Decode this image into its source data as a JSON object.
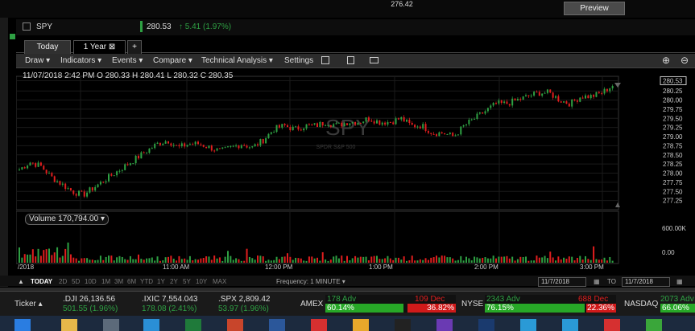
{
  "top": {
    "price_cut": "276.42",
    "preview_label": "Preview"
  },
  "header": {
    "symbol": "SPY",
    "last_price": "280.53",
    "change": "↑ 5.41 (1.97%)"
  },
  "tabs": [
    {
      "label": "Today"
    },
    {
      "label": "1 Year ⊠"
    },
    {
      "label": "+"
    }
  ],
  "toolbar": {
    "draw": "Draw ▾",
    "indicators": "Indicators ▾",
    "events": "Events ▾",
    "compare": "Compare ▾",
    "technical": "Technical Analysis ▾",
    "settings": "Settings",
    "zoom_in": "⊕",
    "zoom_out": "⊖"
  },
  "ohlc": "11/07/2018 2:42 PM  O 280.33  H 280.41  L 280.32  C 280.35",
  "watermark": {
    "symbol": "SPY",
    "name": "SPDR S&P 500"
  },
  "volume_label": "Volume 170,794.00 ▾",
  "price_axis": [
    "280.53",
    "280.25",
    "280.00",
    "279.75",
    "279.50",
    "279.25",
    "279.00",
    "278.75",
    "278.50",
    "278.25",
    "278.00",
    "277.75",
    "277.50",
    "277.25"
  ],
  "volume_axis": [
    "600.00K",
    "0.00"
  ],
  "time_axis": [
    "/2018",
    "11:00 AM",
    "12:00 PM",
    "1:00 PM",
    "2:00 PM",
    "3:00 PM"
  ],
  "bottom_nav": {
    "periods": [
      "TODAY",
      "2D",
      "5D",
      "10D",
      "1M",
      "3M",
      "6M",
      "YTD",
      "1Y",
      "2Y",
      "5Y",
      "10Y",
      "MAX"
    ],
    "frequency": "Frequency: 1 MINUTE ▾",
    "from_date": "11/7/2018",
    "to_label": "TO",
    "to_date": "11/7/2018"
  },
  "ticker_tape": {
    "label": "Ticker ▴",
    "indices": [
      {
        "name": ".DJI 26,136.56",
        "change": "501.55 (1.96%)"
      },
      {
        "name": ".IXIC 7,554.043",
        "change": "178.08 (2.41%)"
      },
      {
        "name": ".SPX 2,809.42",
        "change": "53.97 (1.96%)"
      }
    ],
    "breadth": [
      {
        "exchange": "AMEX",
        "adv": "178 Adv",
        "adv_pct": "60.14%",
        "dec": "109 Dec",
        "dec_pct": "36.82%"
      },
      {
        "exchange": "NYSE",
        "adv": "2343 Adv",
        "adv_pct": "76.15%",
        "dec": "688 Dec",
        "dec_pct": "22.36%"
      },
      {
        "exchange": "NASDAQ",
        "adv": "2073 Adv",
        "adv_pct": "66.06%"
      }
    ]
  },
  "colors": {
    "up": "#2ea043",
    "down": "#e01e1e",
    "background": "#000000"
  },
  "chart_data": {
    "type": "candlestick",
    "ylim": [
      277.0,
      280.65
    ],
    "x_ticks": [
      "11:00 AM",
      "12:00 PM",
      "1:00 PM",
      "2:00 PM",
      "3:00 PM"
    ],
    "close": [
      278.1,
      278.3,
      278.2,
      277.9,
      277.7,
      277.5,
      277.4,
      277.6,
      277.8,
      278.0,
      278.2,
      278.4,
      278.6,
      278.8,
      278.9,
      278.7,
      278.8,
      278.8,
      278.7,
      278.6,
      278.7,
      278.8,
      278.7,
      278.9,
      279.2,
      279.3,
      279.2,
      279.3,
      279.3,
      279.4,
      279.3,
      279.4,
      279.4,
      279.5,
      279.4,
      279.4,
      279.5,
      279.3,
      279.3,
      279.1,
      279.1,
      279.0,
      279.3,
      279.5,
      279.7,
      279.9,
      279.9,
      280.0,
      280.1,
      280.2,
      280.2,
      280.0,
      279.9,
      280.1,
      280.1,
      280.2,
      280.4
    ],
    "volume_level": "mostly low with occasional spikes near 600K"
  }
}
